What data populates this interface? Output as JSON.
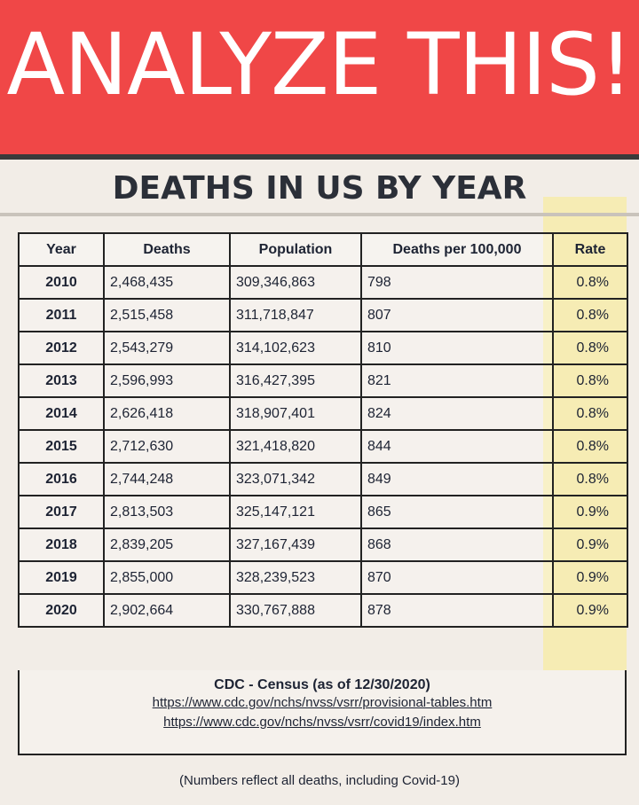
{
  "banner": {
    "text": "ANALYZE THIS!"
  },
  "title": "DEATHS IN US BY YEAR",
  "table": {
    "headers": [
      "Year",
      "Deaths",
      "Population",
      "Deaths per 100,000",
      "Rate"
    ],
    "rows": [
      [
        "2010",
        "2,468,435",
        "309,346,863",
        "798",
        "0.8%"
      ],
      [
        "2011",
        "2,515,458",
        "311,718,847",
        "807",
        "0.8%"
      ],
      [
        "2012",
        "2,543,279",
        "314,102,623",
        "810",
        "0.8%"
      ],
      [
        "2013",
        "2,596,993",
        "316,427,395",
        "821",
        "0.8%"
      ],
      [
        "2014",
        "2,626,418",
        "318,907,401",
        "824",
        "0.8%"
      ],
      [
        "2015",
        "2,712,630",
        "321,418,820",
        "844",
        "0.8%"
      ],
      [
        "2016",
        "2,744,248",
        "323,071,342",
        "849",
        "0.8%"
      ],
      [
        "2017",
        "2,813,503",
        "325,147,121",
        "865",
        "0.9%"
      ],
      [
        "2018",
        "2,839,205",
        "327,167,439",
        "868",
        "0.9%"
      ],
      [
        "2019",
        "2,855,000",
        "328,239,523",
        "870",
        "0.9%"
      ],
      [
        "2020",
        "2,902,664",
        "330,767,888",
        "878",
        "0.9%"
      ]
    ]
  },
  "source": {
    "title": "CDC - Census (as of 12/30/2020)",
    "links": [
      "https://www.cdc.gov/nchs/nvss/vsrr/provisional-tables.htm",
      "https://www.cdc.gov/nchs/nvss/vsrr/covid19/index.htm"
    ]
  },
  "footnote": "(Numbers reflect all deaths, including Covid-19)",
  "colors": {
    "banner_bg": "#f04747",
    "rate_highlight": "#f6ecb4",
    "text": "#1d2333"
  }
}
